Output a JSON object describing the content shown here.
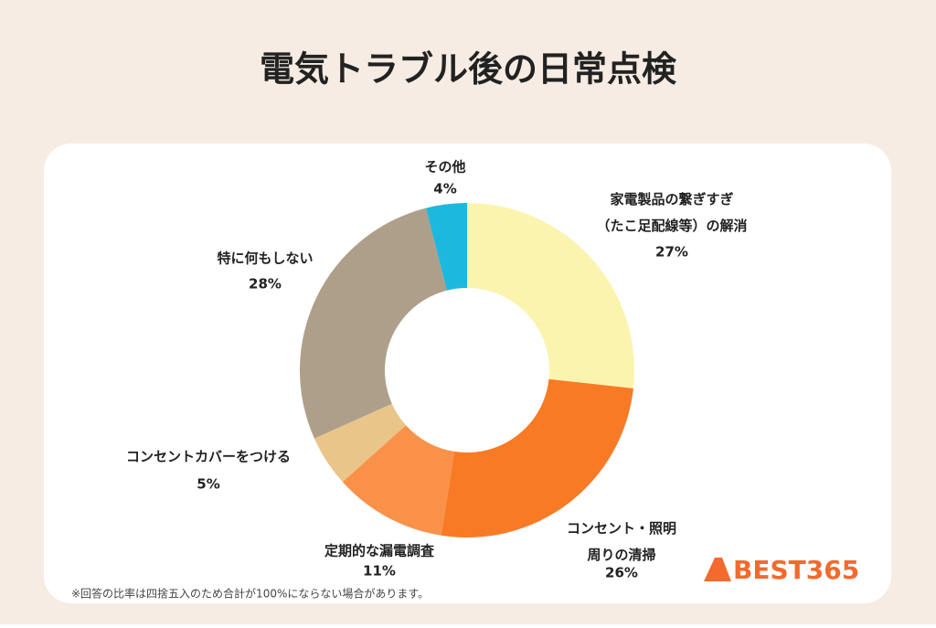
{
  "chart_data": {
    "type": "donut",
    "title": "電気トラブル後の日常点検",
    "categories": [
      "家電製品の繋ぎすぎ\n（たこ足配線等）の解消",
      "コンセント・照明\n周りの清掃",
      "定期的な漏電調査",
      "コンセントカバーをつける",
      "特に何もしない",
      "その他"
    ],
    "values": [
      27,
      26,
      11,
      5,
      28,
      4
    ],
    "value_labels": [
      "27%",
      "26%",
      "11%",
      "5%",
      "28%",
      "4%"
    ],
    "colors": [
      "#fbf4ae",
      "#f97a25",
      "#fa9149",
      "#e9c589",
      "#ae9f8b",
      "#1db8de"
    ],
    "footnote": "※回答の比率は四捨五入のため合計が100%にならない場合があります。",
    "logo": "BEST365"
  }
}
